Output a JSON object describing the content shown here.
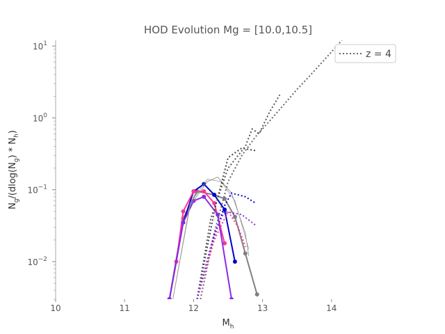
{
  "chart_data": {
    "type": "line",
    "title": "HOD Evolution Mg = [10.0,10.5]",
    "xlabel": "M_h",
    "ylabel": "N_g/(dlog(N_g) * N_h)",
    "xlim": [
      10,
      15
    ],
    "ylim": [
      0.003,
      12
    ],
    "yscale": "log",
    "grid": false,
    "legend_position": "top-right",
    "x_ticks": [
      {
        "value": 10,
        "label": "10"
      },
      {
        "value": 11,
        "label": "11"
      },
      {
        "value": 12,
        "label": "12"
      },
      {
        "value": 13,
        "label": "13"
      },
      {
        "value": 14,
        "label": "14"
      }
    ],
    "y_ticks": [
      {
        "value": 0.01,
        "base": "10",
        "exp": "−2"
      },
      {
        "value": 0.1,
        "base": "10",
        "exp": "−1"
      },
      {
        "value": 1,
        "base": "10",
        "exp": "0"
      },
      {
        "value": 10,
        "base": "10",
        "exp": "1"
      }
    ],
    "legend": [
      {
        "label": "z = 4",
        "color": "#666666",
        "style": "dotted"
      }
    ],
    "series": [
      {
        "color": "#808080",
        "style": "solid-markers",
        "x": [
          11.65,
          11.85,
          12.05,
          12.3,
          12.45,
          12.6,
          12.75,
          12.92
        ],
        "y": [
          0.003,
          0.04,
          0.095,
          0.085,
          0.075,
          0.042,
          0.013,
          0.0035
        ]
      },
      {
        "color": "#0000cc",
        "style": "solid-markers",
        "x": [
          11.65,
          11.85,
          12.0,
          12.15,
          12.3,
          12.45,
          12.6
        ],
        "y": [
          0.003,
          0.035,
          0.095,
          0.12,
          0.085,
          0.053,
          0.01
        ]
      },
      {
        "color": "#ff3399",
        "style": "solid-markers",
        "x": [
          11.65,
          11.75,
          11.85,
          12.0,
          12.15,
          12.3,
          12.45
        ],
        "y": [
          0.003,
          0.01,
          0.05,
          0.095,
          0.095,
          0.065,
          0.018
        ]
      },
      {
        "color": "#8a2be2",
        "style": "solid-markers",
        "x": [
          11.65,
          11.85,
          12.0,
          12.15,
          12.35,
          12.55
        ],
        "y": [
          0.003,
          0.035,
          0.07,
          0.08,
          0.045,
          0.003
        ]
      },
      {
        "color": "#888888",
        "style": "thin-solid",
        "x": [
          11.7,
          11.95,
          12.2,
          12.35,
          12.55,
          12.75,
          12.8
        ],
        "y": [
          0.003,
          0.06,
          0.13,
          0.15,
          0.09,
          0.025,
          0.012
        ]
      },
      {
        "color": "#999999",
        "style": "thin-solid",
        "x": [
          11.7,
          11.95,
          12.2,
          12.4,
          12.6,
          12.8
        ],
        "y": [
          0.003,
          0.065,
          0.14,
          0.13,
          0.07,
          0.015
        ]
      },
      {
        "color": "#666666",
        "style": "dotted",
        "x": [
          12.1,
          12.3,
          12.5,
          12.7,
          12.9,
          13.1,
          13.3,
          13.5,
          13.7,
          13.9,
          14.15
        ],
        "y": [
          0.003,
          0.025,
          0.13,
          0.3,
          0.55,
          0.9,
          1.5,
          2.5,
          4.0,
          6.5,
          12
        ]
      },
      {
        "color": "#555555",
        "style": "dotted",
        "x": [
          12.05,
          12.25,
          12.5,
          12.75,
          12.85,
          12.95,
          13.1,
          13.25
        ],
        "y": [
          0.003,
          0.04,
          0.2,
          0.4,
          0.7,
          0.6,
          1.2,
          2.1
        ]
      },
      {
        "color": "#444444",
        "style": "dotted",
        "x": [
          12.05,
          12.3,
          12.5,
          12.7,
          12.9
        ],
        "y": [
          0.003,
          0.05,
          0.28,
          0.38,
          0.35
        ]
      },
      {
        "color": "#0000cc",
        "style": "dotted",
        "x": [
          12.05,
          12.25,
          12.45,
          12.55,
          12.75,
          12.9
        ],
        "y": [
          0.003,
          0.016,
          0.06,
          0.09,
          0.08,
          0.065
        ]
      },
      {
        "color": "#ff3399",
        "style": "dotted",
        "x": [
          12.05,
          12.3,
          12.5,
          12.65,
          12.75
        ],
        "y": [
          0.003,
          0.02,
          0.05,
          0.03,
          0.016
        ]
      },
      {
        "color": "#8a2be2",
        "style": "dotted",
        "x": [
          12.05,
          12.3,
          12.45,
          12.7,
          12.9
        ],
        "y": [
          0.003,
          0.025,
          0.05,
          0.045,
          0.032
        ]
      }
    ]
  }
}
